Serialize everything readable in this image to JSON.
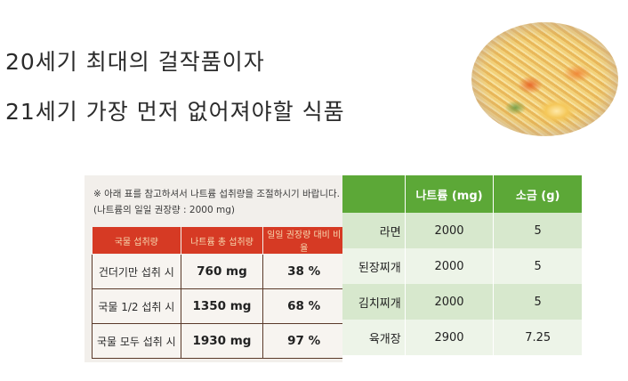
{
  "headline": {
    "line1": "20세기 최대의 걸작품이자",
    "line2": "21세기 가장 먼저 없어져야할 식품"
  },
  "package_label": {
    "note1": "※ 아래 표를 참고하셔서 나트륨 섭취량을 조절하시기 바랍니다.",
    "note2": "(나트륨의 일일 권장량 : 2000 mg)",
    "columns": [
      "국물 섭취량",
      "나트륨 총 섭취량",
      "일일 권장량 대비 비율"
    ],
    "rows": [
      {
        "label": "건더기만 섭취 시",
        "sodium": "760 mg",
        "ratio": "38 %"
      },
      {
        "label": "국물 1/2 섭취 시",
        "sodium": "1350 mg",
        "ratio": "68 %"
      },
      {
        "label": "국물 모두 섭취 시",
        "sodium": "1930 mg",
        "ratio": "97 %"
      }
    ]
  },
  "comparison_table": {
    "columns": [
      "",
      "나트륨 (mg)",
      "소금 (g)"
    ],
    "rows": [
      {
        "food": "라면",
        "sodium": "2000",
        "salt": "5"
      },
      {
        "food": "된장찌개",
        "sodium": "2000",
        "salt": "5"
      },
      {
        "food": "김치찌개",
        "sodium": "2000",
        "salt": "5"
      },
      {
        "food": "육개장",
        "sodium": "2900",
        "salt": "7.25"
      }
    ]
  }
}
